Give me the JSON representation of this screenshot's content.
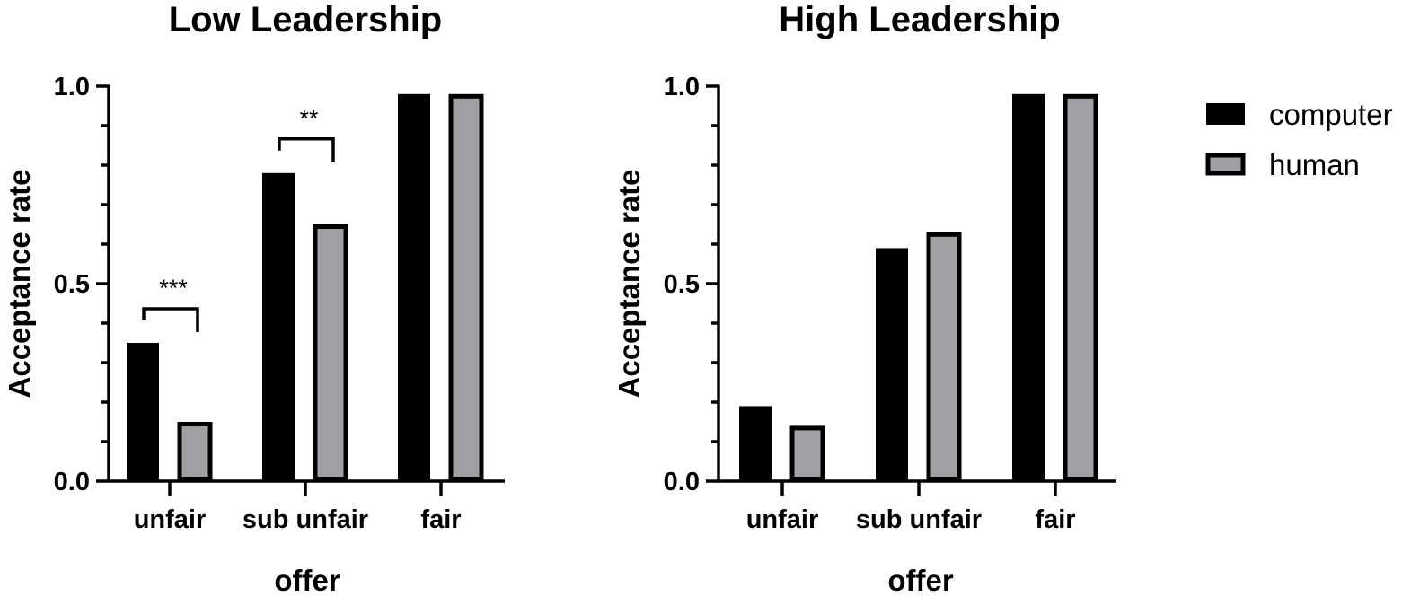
{
  "colors": {
    "computer": "#000000",
    "human_fill": "#a0a0a4",
    "human_stroke": "#000000",
    "axis": "#000000"
  },
  "chart_data": [
    {
      "type": "bar",
      "title": "Low Leadership",
      "xlabel": "offer",
      "ylabel": "Acceptance rate",
      "categories": [
        "unfair",
        "sub unfair",
        "fair"
      ],
      "series": [
        {
          "name": "computer",
          "values": [
            0.35,
            0.78,
            0.98
          ]
        },
        {
          "name": "human",
          "values": [
            0.15,
            0.65,
            0.98
          ]
        }
      ],
      "ylim": [
        0,
        1
      ],
      "yticks": [
        0.0,
        0.5,
        1.0
      ],
      "ytick_labels": [
        "0.0",
        "0.5",
        "1.0"
      ],
      "grid": false,
      "significance": [
        {
          "category_index": 0,
          "label": "***"
        },
        {
          "category_index": 1,
          "label": "**"
        }
      ]
    },
    {
      "type": "bar",
      "title": "High Leadership",
      "xlabel": "offer",
      "ylabel": "Acceptance rate",
      "categories": [
        "unfair",
        "sub unfair",
        "fair"
      ],
      "series": [
        {
          "name": "computer",
          "values": [
            0.19,
            0.59,
            0.98
          ]
        },
        {
          "name": "human",
          "values": [
            0.14,
            0.63,
            0.98
          ]
        }
      ],
      "ylim": [
        0,
        1
      ],
      "yticks": [
        0.0,
        0.5,
        1.0
      ],
      "ytick_labels": [
        "0.0",
        "0.5",
        "1.0"
      ],
      "grid": false,
      "significance": []
    }
  ],
  "legend": {
    "position": "right",
    "items": [
      {
        "label": "computer",
        "series": "computer"
      },
      {
        "label": "human",
        "series": "human"
      }
    ]
  }
}
